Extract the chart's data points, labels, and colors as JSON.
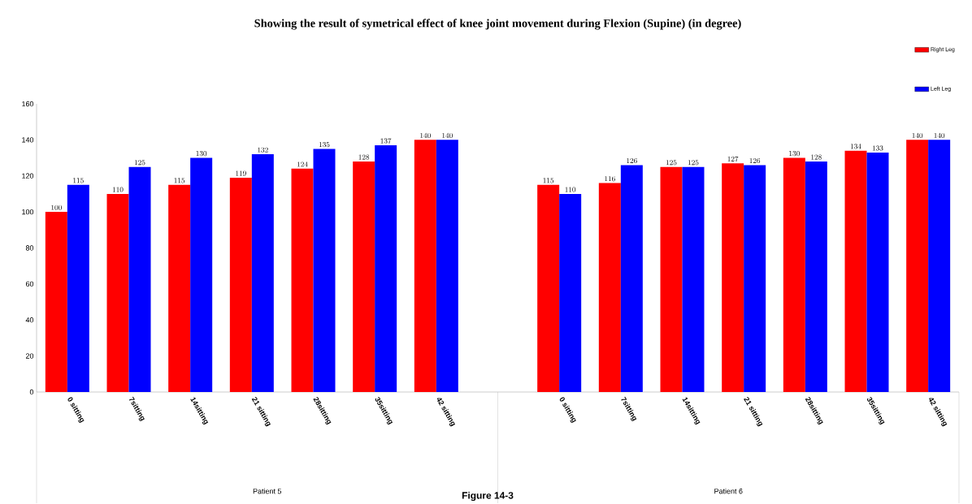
{
  "chart_data": {
    "type": "bar",
    "title": "Showing the result of  symetrical effect of knee joint movement during Flexion (Supine) (in degree)",
    "categories": [
      "0 sitting",
      "7sitting",
      "14sitting",
      "21 sitting",
      "28sitting",
      "35sitting",
      "42 sitting",
      null,
      "0 sitting",
      "7sitting",
      "14sitting",
      "21 sitting",
      "28sitting",
      "35sitting",
      "42 sitting"
    ],
    "series": [
      {
        "name": "Right Leg",
        "color": "#ff0000",
        "values": [
          100,
          110,
          115,
          119,
          124,
          128,
          140,
          null,
          115,
          116,
          125,
          127,
          130,
          134,
          140
        ]
      },
      {
        "name": "Left Leg",
        "color": "#0000ff",
        "values": [
          115,
          125,
          130,
          132,
          135,
          137,
          140,
          null,
          110,
          126,
          125,
          126,
          128,
          133,
          140
        ]
      }
    ],
    "ylim": [
      0,
      160
    ],
    "yticks": [
      0,
      20,
      40,
      60,
      80,
      100,
      120,
      140,
      160
    ],
    "data_labels": true,
    "legend": "top right",
    "grid": false,
    "annotations": [
      "Patient 5",
      "Patient 6",
      "Figure 14-3"
    ]
  }
}
